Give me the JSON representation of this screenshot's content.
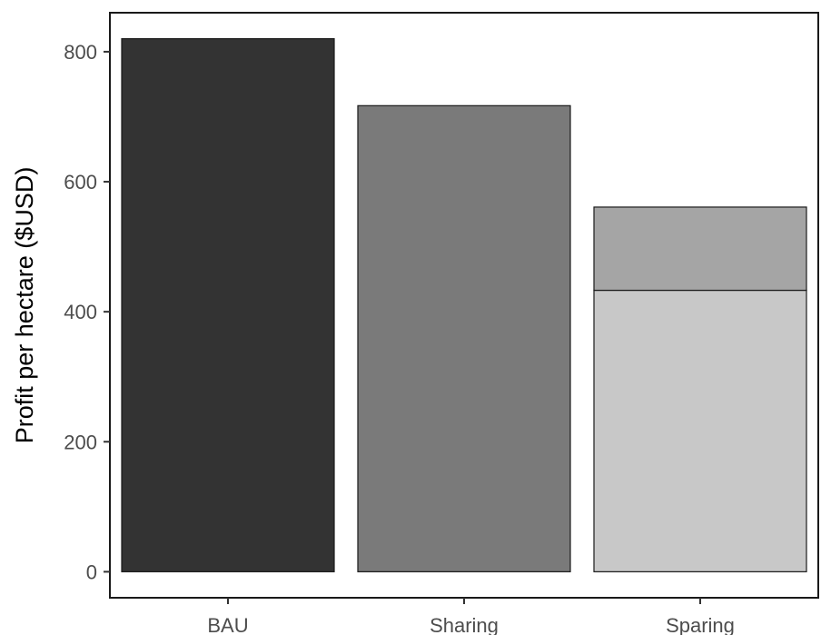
{
  "chart_data": {
    "type": "bar",
    "title": "",
    "xlabel": "",
    "ylabel": "Profit per hectare ($USD)",
    "categories": [
      "BAU",
      "Sharing",
      "Sparing"
    ],
    "ylim": [
      -40,
      860
    ],
    "yticks": [
      0,
      200,
      400,
      600,
      800
    ],
    "grid": false,
    "legend": "none",
    "bars": [
      {
        "category": "BAU",
        "segments": [
          {
            "from": 0,
            "to": 820,
            "color": "#333333"
          }
        ]
      },
      {
        "category": "Sharing",
        "segments": [
          {
            "from": 0,
            "to": 717,
            "color": "#7a7a7a"
          }
        ]
      },
      {
        "category": "Sparing",
        "segments": [
          {
            "from": 0,
            "to": 433,
            "color": "#c8c8c8"
          },
          {
            "from": 433,
            "to": 561,
            "color": "#a5a5a5"
          }
        ]
      }
    ]
  }
}
